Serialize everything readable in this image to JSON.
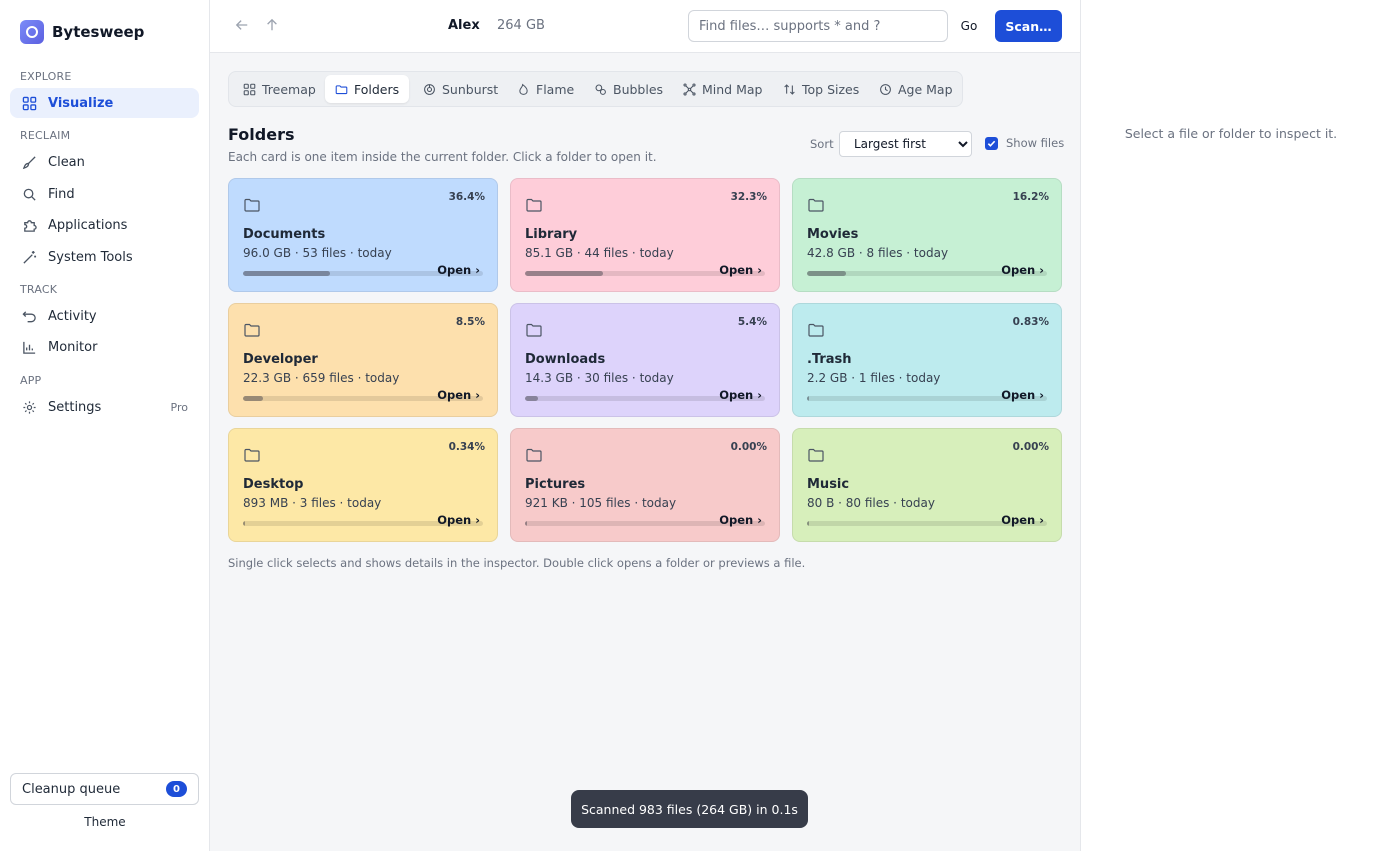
{
  "app": {
    "name": "Bytesweep",
    "brand_color": "#1d4ed8"
  },
  "sidebar": {
    "sections": [
      "EXPLORE",
      "RECLAIM",
      "TRACK",
      "APP"
    ],
    "items": [
      {
        "label": "Visualize",
        "icon": "grid-icon",
        "active": true
      },
      {
        "label": "Clean",
        "icon": "brush-icon"
      },
      {
        "label": "Find",
        "icon": "search-icon"
      },
      {
        "label": "Applications",
        "icon": "puzzle-icon"
      },
      {
        "label": "System Tools",
        "icon": "wand-icon"
      },
      {
        "label": "Activity",
        "icon": "undo-icon"
      },
      {
        "label": "Monitor",
        "icon": "bar-chart-icon"
      },
      {
        "label": "Settings",
        "icon": "gear-icon",
        "badge": "Pro"
      }
    ],
    "queue": {
      "label": "Cleanup queue",
      "count": "0"
    },
    "theme_label": "Theme"
  },
  "topbar": {
    "user": "Alex",
    "size": "264 GB",
    "search_placeholder": "Find files… supports * and ?",
    "go_label": "Go",
    "scan_label": "Scan…"
  },
  "tabs": [
    {
      "label": "Treemap",
      "icon": "treemap-icon"
    },
    {
      "label": "Folders",
      "icon": "folder-icon",
      "active": true
    },
    {
      "label": "Sunburst",
      "icon": "sunburst-icon"
    },
    {
      "label": "Flame",
      "icon": "flame-icon"
    },
    {
      "label": "Bubbles",
      "icon": "bubbles-icon"
    },
    {
      "label": "Mind Map",
      "icon": "mindmap-icon"
    },
    {
      "label": "Top Sizes",
      "icon": "sort-icon"
    },
    {
      "label": "Age Map",
      "icon": "clock-icon"
    }
  ],
  "main": {
    "title": "Folders",
    "subtitle": "Each card is one item inside the current folder. Click a folder to open it.",
    "sort_label": "Sort",
    "sort_value": "Largest first",
    "show_files_label": "Show files",
    "show_files_checked": true,
    "footnote": "Single click selects and shows details in the inspector. Double click opens a folder or previews a file.",
    "open_label": "Open ›"
  },
  "cards": [
    {
      "name": "Documents",
      "meta": "96.0 GB · 53 files · today",
      "pct": "36.4%",
      "fraction": 0.364,
      "color": "#bfdbfe"
    },
    {
      "name": "Library",
      "meta": "85.1 GB · 44 files · today",
      "pct": "32.3%",
      "fraction": 0.323,
      "color": "#fecdd9"
    },
    {
      "name": "Movies",
      "meta": "42.8 GB · 8 files · today",
      "pct": "16.2%",
      "fraction": 0.162,
      "color": "#c6f0d4"
    },
    {
      "name": "Developer",
      "meta": "22.3 GB · 659 files · today",
      "pct": "8.5%",
      "fraction": 0.085,
      "color": "#fde0ad"
    },
    {
      "name": "Downloads",
      "meta": "14.3 GB · 30 files · today",
      "pct": "5.4%",
      "fraction": 0.054,
      "color": "#ddd3fb"
    },
    {
      "name": ".Trash",
      "meta": "2.2 GB · 1 files · today",
      "pct": "0.83%",
      "fraction": 0.0083,
      "color": "#bdebee"
    },
    {
      "name": "Desktop",
      "meta": "893 MB · 3 files · today",
      "pct": "0.34%",
      "fraction": 0.0034,
      "color": "#fde8a6"
    },
    {
      "name": "Pictures",
      "meta": "921 KB · 105 files · today",
      "pct": "0.00%",
      "fraction": 0.0,
      "color": "#f7caca"
    },
    {
      "name": "Music",
      "meta": "80 B · 80 files · today",
      "pct": "0.00%",
      "fraction": 0.0,
      "color": "#d7efbb"
    }
  ],
  "toast": "Scanned 983 files (264 GB) in 0.1s",
  "inspector": {
    "empty_text": "Select a file or folder to inspect it."
  }
}
